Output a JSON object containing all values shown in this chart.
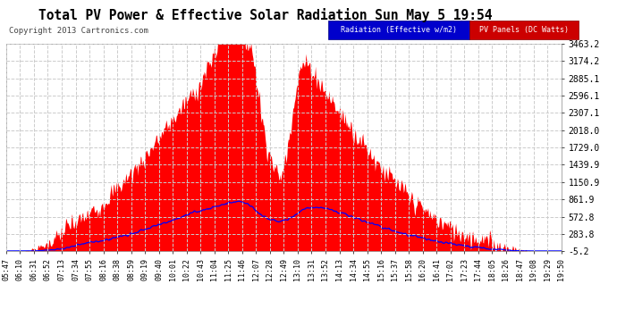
{
  "title": "Total PV Power & Effective Solar Radiation Sun May 5 19:54",
  "copyright": "Copyright 2013 Cartronics.com",
  "legend_radiation": "Radiation (Effective w/m2)",
  "legend_pv": "PV Panels (DC Watts)",
  "yticks": [
    -5.2,
    283.8,
    572.8,
    861.9,
    1150.9,
    1439.9,
    1729.0,
    2018.0,
    2307.1,
    2596.1,
    2885.1,
    3174.2,
    3463.2
  ],
  "xtick_labels": [
    "05:47",
    "06:10",
    "06:31",
    "06:52",
    "07:13",
    "07:34",
    "07:55",
    "08:16",
    "08:38",
    "08:59",
    "09:19",
    "09:40",
    "10:01",
    "10:22",
    "10:43",
    "11:04",
    "11:25",
    "11:46",
    "12:07",
    "12:28",
    "12:49",
    "13:10",
    "13:31",
    "13:52",
    "14:13",
    "14:34",
    "14:55",
    "15:16",
    "15:37",
    "15:58",
    "16:20",
    "16:41",
    "17:02",
    "17:23",
    "17:44",
    "18:05",
    "18:26",
    "18:47",
    "19:08",
    "19:29",
    "19:50"
  ],
  "bg_color": "#ffffff",
  "plot_bg_color": "#ffffff",
  "grid_color": "#cccccc",
  "fill_color": "#ff0000",
  "line_color": "#0000ff",
  "title_color": "#000000",
  "title_fontsize": 11,
  "ymin": -5.2,
  "ymax": 3463.2
}
